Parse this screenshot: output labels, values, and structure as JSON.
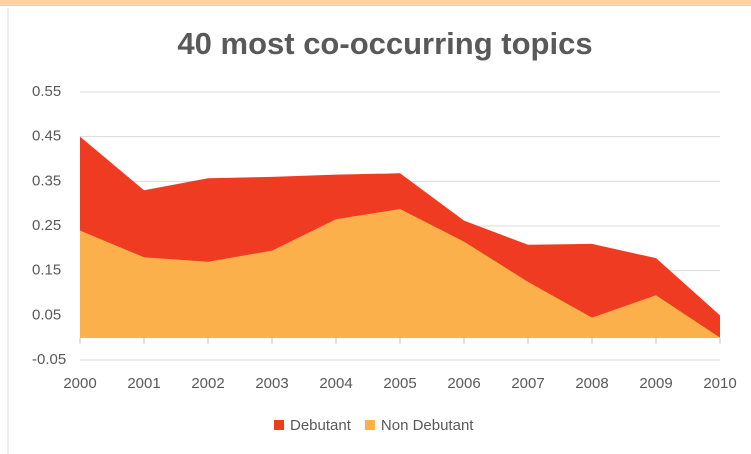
{
  "chart_data": {
    "type": "area",
    "title": "40 most co-occurring topics",
    "categories": [
      "2000",
      "2001",
      "2002",
      "2003",
      "2004",
      "2005",
      "2006",
      "2007",
      "2008",
      "2009",
      "2010"
    ],
    "series": [
      {
        "name": "Debutant",
        "color": "#ef3b22",
        "values": [
          0.45,
          0.33,
          0.357,
          0.36,
          0.365,
          0.368,
          0.262,
          0.208,
          0.21,
          0.178,
          0.05
        ]
      },
      {
        "name": "Non Debutant",
        "color": "#fbb04c",
        "values": [
          0.24,
          0.18,
          0.17,
          0.195,
          0.265,
          0.288,
          0.215,
          0.125,
          0.045,
          0.095,
          0.0
        ]
      }
    ],
    "ylim": [
      -0.05,
      0.55
    ],
    "yticks": [
      -0.05,
      0.05,
      0.15,
      0.25,
      0.35,
      0.45,
      0.55
    ],
    "grid": true,
    "legend": "bottom"
  }
}
